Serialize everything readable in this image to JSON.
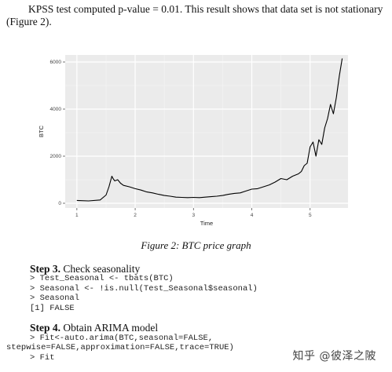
{
  "intro": {
    "text": "KPSS test computed p-value = 0.01. This result shows that data set is not stationary (Figure 2)."
  },
  "figure": {
    "caption": "Figure 2: BTC price graph"
  },
  "chart_data": {
    "type": "line",
    "title": "",
    "xlabel": "Time",
    "ylabel": "BTC",
    "xlim": [
      0.8,
      5.65
    ],
    "ylim": [
      -200,
      6300
    ],
    "x_ticks": [
      1,
      2,
      3,
      4,
      5
    ],
    "y_ticks": [
      0,
      2000,
      4000,
      6000
    ],
    "grid": true,
    "background": "#ebebeb",
    "series": [
      {
        "color": "#000000",
        "x": [
          1.0,
          1.2,
          1.4,
          1.5,
          1.55,
          1.6,
          1.62,
          1.65,
          1.7,
          1.75,
          1.8,
          1.9,
          2.0,
          2.1,
          2.2,
          2.3,
          2.4,
          2.5,
          2.6,
          2.7,
          2.8,
          2.9,
          3.0,
          3.1,
          3.2,
          3.3,
          3.4,
          3.5,
          3.6,
          3.7,
          3.8,
          3.9,
          4.0,
          4.1,
          4.2,
          4.3,
          4.4,
          4.5,
          4.6,
          4.7,
          4.8,
          4.85,
          4.9,
          4.95,
          5.0,
          5.05,
          5.1,
          5.15,
          5.2,
          5.25,
          5.3,
          5.35,
          5.4,
          5.45,
          5.5,
          5.55
        ],
        "y": [
          120,
          100,
          140,
          350,
          700,
          1150,
          1050,
          950,
          1000,
          850,
          760,
          700,
          620,
          560,
          480,
          440,
          380,
          330,
          300,
          260,
          250,
          240,
          250,
          240,
          260,
          280,
          300,
          330,
          380,
          420,
          440,
          520,
          600,
          620,
          700,
          780,
          900,
          1050,
          1000,
          1150,
          1250,
          1350,
          1600,
          1700,
          2400,
          2600,
          2000,
          2700,
          2500,
          3200,
          3600,
          4200,
          3800,
          4500,
          5400,
          6150
        ]
      }
    ]
  },
  "step3": {
    "label": "Step 3.",
    "title": "Check seasonality",
    "code": "> Test_Seasonal <- tbats(BTC)\n> Seasonal <- !is.null(Test_Seasonal$seasonal)\n> Seasonal\n[1] FALSE"
  },
  "step4": {
    "label": "Step 4.",
    "title": "Obtain ARIMA model",
    "code_line1": "> Fit<-auto.arima(BTC,seasonal=FALSE,",
    "code_line2": "stepwise=FALSE,approximation=FALSE,trace=TRUE)",
    "code_line3": "> Fit"
  },
  "watermark": "知乎 @彼泽之陂"
}
